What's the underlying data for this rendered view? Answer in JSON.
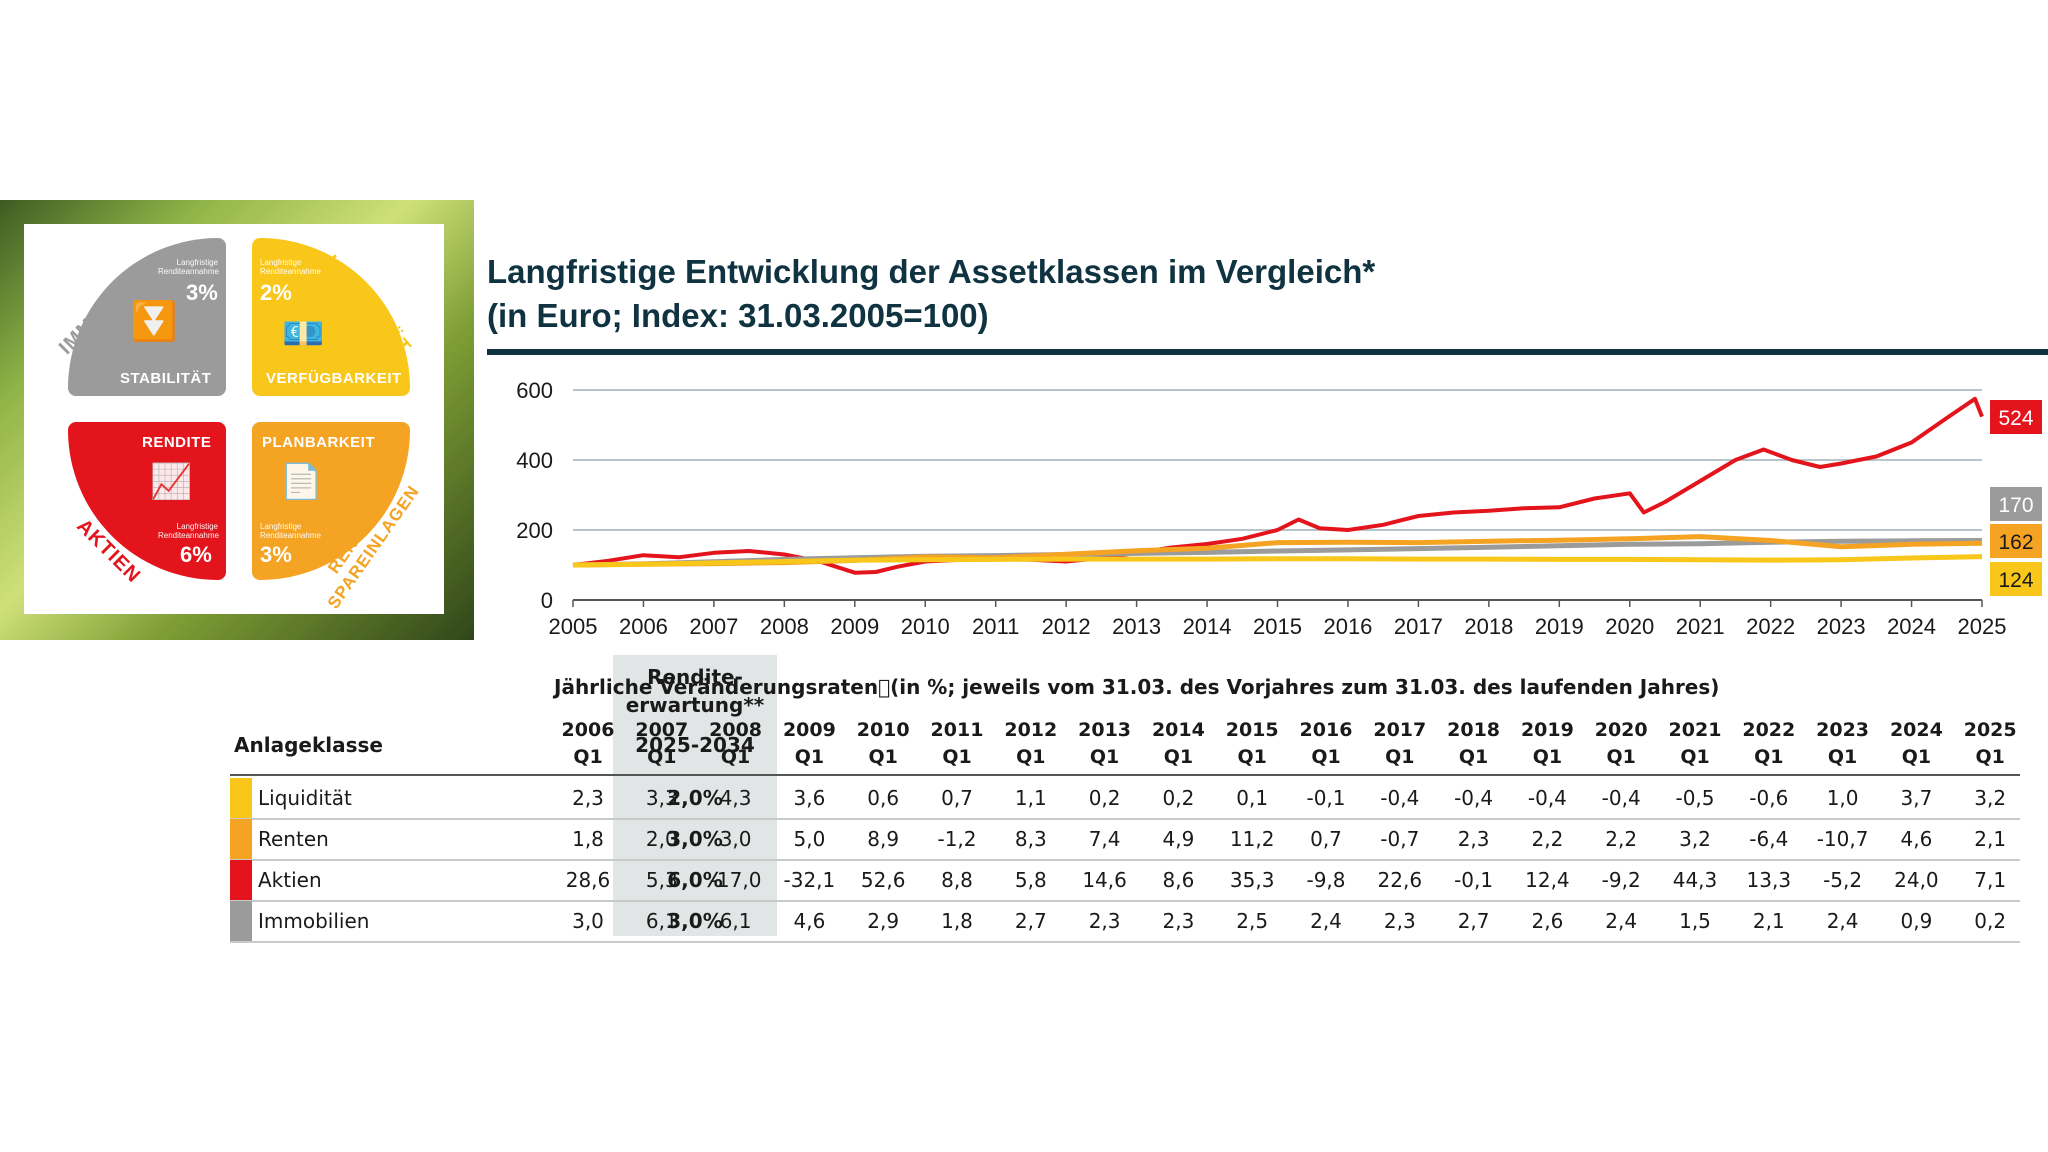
{
  "quadrant": {
    "immobilien": {
      "arc": "IMMOBILIEN",
      "note": "Langfristige Renditeannahme",
      "pct": "3%",
      "caption": "STABILITÄT",
      "color": "#9b9b9b"
    },
    "liquiditaet": {
      "arc": "LIQUIDITÄT",
      "note": "Langfristige Renditeannahme",
      "pct": "2%",
      "caption": "VERFÜGBARKEIT",
      "color": "#f9c61a"
    },
    "aktien": {
      "arc": "AKTIEN",
      "note": "Langfristige Renditeannahme",
      "pct": "6%",
      "caption": "RENDITE",
      "color": "#e3141c"
    },
    "renten": {
      "arc": "RENTEN/ SPAREINLAGEN",
      "note": "Langfristige Renditeannahme",
      "pct": "3%",
      "caption": "PLANBARKEIT",
      "color": "#f4a323"
    }
  },
  "title": {
    "line1": "Langfristige Entwicklung der Assetklassen im Vergleich*",
    "line2": "(in Euro; Index: 31.03.2005=100)"
  },
  "chart_data": {
    "type": "line",
    "title": "Langfristige Entwicklung der Assetklassen im Vergleich* (in Euro; Index: 31.03.2005=100)",
    "xlabel": "",
    "ylabel": "",
    "x_ticks": [
      "2005",
      "2006",
      "2007",
      "2008",
      "2009",
      "2010",
      "2011",
      "2012",
      "2013",
      "2014",
      "2015",
      "2016",
      "2017",
      "2018",
      "2019",
      "2020",
      "2021",
      "2022",
      "2023",
      "2024",
      "2025"
    ],
    "y_ticks": [
      0,
      200,
      400,
      600
    ],
    "ylim": [
      0,
      600
    ],
    "grid": true,
    "series": [
      {
        "key": "aktien",
        "color": "#e3141c",
        "end_label": "524",
        "points": [
          [
            2005.0,
            100
          ],
          [
            2005.5,
            112
          ],
          [
            2006.0,
            128
          ],
          [
            2006.5,
            122
          ],
          [
            2007.0,
            135
          ],
          [
            2007.5,
            140
          ],
          [
            2008.0,
            130
          ],
          [
            2008.5,
            110
          ],
          [
            2009.0,
            78
          ],
          [
            2009.3,
            80
          ],
          [
            2009.6,
            95
          ],
          [
            2010.0,
            110
          ],
          [
            2010.5,
            115
          ],
          [
            2011.0,
            122
          ],
          [
            2011.5,
            115
          ],
          [
            2012.0,
            110
          ],
          [
            2012.5,
            120
          ],
          [
            2013.0,
            135
          ],
          [
            2013.5,
            150
          ],
          [
            2014.0,
            160
          ],
          [
            2014.5,
            175
          ],
          [
            2015.0,
            200
          ],
          [
            2015.3,
            230
          ],
          [
            2015.6,
            205
          ],
          [
            2016.0,
            200
          ],
          [
            2016.5,
            215
          ],
          [
            2017.0,
            240
          ],
          [
            2017.5,
            250
          ],
          [
            2018.0,
            255
          ],
          [
            2018.5,
            262
          ],
          [
            2019.0,
            265
          ],
          [
            2019.5,
            290
          ],
          [
            2020.0,
            305
          ],
          [
            2020.2,
            250
          ],
          [
            2020.5,
            280
          ],
          [
            2021.0,
            340
          ],
          [
            2021.5,
            400
          ],
          [
            2021.9,
            430
          ],
          [
            2022.3,
            400
          ],
          [
            2022.7,
            380
          ],
          [
            2023.0,
            390
          ],
          [
            2023.5,
            410
          ],
          [
            2024.0,
            450
          ],
          [
            2024.5,
            520
          ],
          [
            2024.9,
            575
          ],
          [
            2025.0,
            524
          ]
        ]
      },
      {
        "key": "immobilien",
        "color": "#9b9b9b",
        "end_label": "170",
        "points": [
          [
            2005.0,
            100
          ],
          [
            2006.0,
            103
          ],
          [
            2007.0,
            109
          ],
          [
            2008.0,
            116
          ],
          [
            2009.0,
            121
          ],
          [
            2010.0,
            125
          ],
          [
            2011.0,
            127
          ],
          [
            2012.0,
            130
          ],
          [
            2013.0,
            133
          ],
          [
            2014.0,
            136
          ],
          [
            2015.0,
            140
          ],
          [
            2016.0,
            143
          ],
          [
            2017.0,
            147
          ],
          [
            2018.0,
            151
          ],
          [
            2019.0,
            155
          ],
          [
            2020.0,
            159
          ],
          [
            2021.0,
            161
          ],
          [
            2022.0,
            165
          ],
          [
            2023.0,
            168
          ],
          [
            2024.0,
            169
          ],
          [
            2025.0,
            170
          ]
        ]
      },
      {
        "key": "renten",
        "color": "#f4a323",
        "end_label": "162",
        "points": [
          [
            2005.0,
            100
          ],
          [
            2006.0,
            102
          ],
          [
            2007.0,
            104
          ],
          [
            2008.0,
            107
          ],
          [
            2009.0,
            113
          ],
          [
            2010.0,
            123
          ],
          [
            2011.0,
            121
          ],
          [
            2012.0,
            131
          ],
          [
            2013.0,
            141
          ],
          [
            2014.0,
            148
          ],
          [
            2015.0,
            164
          ],
          [
            2016.0,
            165
          ],
          [
            2017.0,
            164
          ],
          [
            2018.0,
            168
          ],
          [
            2019.0,
            171
          ],
          [
            2020.0,
            175
          ],
          [
            2021.0,
            181
          ],
          [
            2022.0,
            170
          ],
          [
            2023.0,
            152
          ],
          [
            2024.0,
            159
          ],
          [
            2025.0,
            162
          ]
        ]
      },
      {
        "key": "liquiditaet",
        "color": "#f9c61a",
        "end_label": "124",
        "points": [
          [
            2005.0,
            100
          ],
          [
            2006.0,
            102
          ],
          [
            2007.0,
            106
          ],
          [
            2008.0,
            110
          ],
          [
            2009.0,
            114
          ],
          [
            2010.0,
            115
          ],
          [
            2011.0,
            116
          ],
          [
            2012.0,
            117
          ],
          [
            2013.0,
            117
          ],
          [
            2014.0,
            117
          ],
          [
            2015.0,
            118
          ],
          [
            2016.0,
            118
          ],
          [
            2017.0,
            117
          ],
          [
            2018.0,
            117
          ],
          [
            2019.0,
            116
          ],
          [
            2020.0,
            116
          ],
          [
            2021.0,
            115
          ],
          [
            2022.0,
            114
          ],
          [
            2023.0,
            115
          ],
          [
            2024.0,
            120
          ],
          [
            2025.0,
            124
          ]
        ]
      }
    ]
  },
  "table": {
    "header_rendite": "Rendite-erwartung**",
    "header_period": "2025-2034",
    "header_class": "Anlageklasse",
    "header_rates": "Jährliche Veränderungsraten\u0000(in %; jeweils vom 31.03. des Vorjahres zum 31.03. des laufenden Jahres)",
    "years": [
      "2006",
      "2007",
      "2008",
      "2009",
      "2010",
      "2011",
      "2012",
      "2013",
      "2014",
      "2015",
      "2016",
      "2017",
      "2018",
      "2019",
      "2020",
      "2021",
      "2022",
      "2023",
      "2024",
      "2025"
    ],
    "quarter": "Q1",
    "rows": [
      {
        "name": "Liquidität",
        "color": "#f9c61a",
        "expect": "2,0%",
        "values": [
          "2,3",
          "3,3",
          "4,3",
          "3,6",
          "0,6",
          "0,7",
          "1,1",
          "0,2",
          "0,2",
          "0,1",
          "-0,1",
          "-0,4",
          "-0,4",
          "-0,4",
          "-0,4",
          "-0,5",
          "-0,6",
          "1,0",
          "3,7",
          "3,2"
        ]
      },
      {
        "name": "Renten",
        "color": "#f4a323",
        "expect": "3,0%",
        "values": [
          "1,8",
          "2,0",
          "3,0",
          "5,0",
          "8,9",
          "-1,2",
          "8,3",
          "7,4",
          "4,9",
          "11,2",
          "0,7",
          "-0,7",
          "2,3",
          "2,2",
          "2,2",
          "3,2",
          "-6,4",
          "-10,7",
          "4,6",
          "2,1"
        ]
      },
      {
        "name": "Aktien",
        "color": "#e3141c",
        "expect": "6,0%",
        "values": [
          "28,6",
          "5,3",
          "-17,0",
          "-32,1",
          "52,6",
          "8,8",
          "5,8",
          "14,6",
          "8,6",
          "35,3",
          "-9,8",
          "22,6",
          "-0,1",
          "12,4",
          "-9,2",
          "44,3",
          "13,3",
          "-5,2",
          "24,0",
          "7,1"
        ]
      },
      {
        "name": "Immobilien",
        "color": "#9b9b9b",
        "expect": "3,0%",
        "values": [
          "3,0",
          "6,1",
          "6,1",
          "4,6",
          "2,9",
          "1,8",
          "2,7",
          "2,3",
          "2,3",
          "2,5",
          "2,4",
          "2,3",
          "2,7",
          "2,6",
          "2,4",
          "1,5",
          "2,1",
          "2,4",
          "0,9",
          "0,2"
        ]
      }
    ]
  }
}
